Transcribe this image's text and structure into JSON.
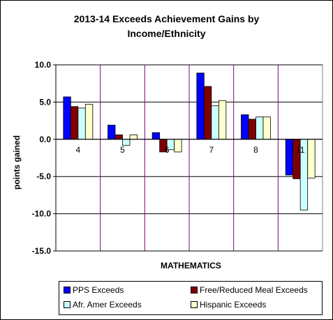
{
  "chart_data": {
    "type": "bar",
    "title": "2013-14 Exceeds Achievement Gains by\nIncome/Ethnicity",
    "xlabel": "MATHEMATICS",
    "ylabel": "points gained",
    "categories": [
      "4",
      "5",
      "6",
      "7",
      "8",
      "11"
    ],
    "series": [
      {
        "name": "PPS Exceeds",
        "color": "#0000ff",
        "values": [
          5.7,
          1.9,
          0.9,
          8.9,
          3.3,
          -4.8
        ]
      },
      {
        "name": "Free/Reduced Meal Exceeds",
        "color": "#800000",
        "values": [
          4.4,
          0.6,
          -1.7,
          7.1,
          2.7,
          -5.3
        ]
      },
      {
        "name": "Afr. Amer Exceeds",
        "color": "#ccffff",
        "values": [
          4.2,
          -0.8,
          -1.4,
          4.5,
          3.0,
          -9.5
        ]
      },
      {
        "name": "Hispanic Exceeds",
        "color": "#ffffcc",
        "values": [
          4.7,
          0.6,
          -1.7,
          5.2,
          3.0,
          -5.2
        ]
      }
    ],
    "ylim": [
      -15,
      10
    ],
    "yticks": [
      10,
      5,
      0,
      -5,
      -10,
      -15
    ],
    "ytick_labels": [
      "10.0",
      "5.0",
      "0.0",
      "-5.0",
      "-10.0",
      "-15.0"
    ],
    "grid": true,
    "legend_position": "bottom"
  }
}
